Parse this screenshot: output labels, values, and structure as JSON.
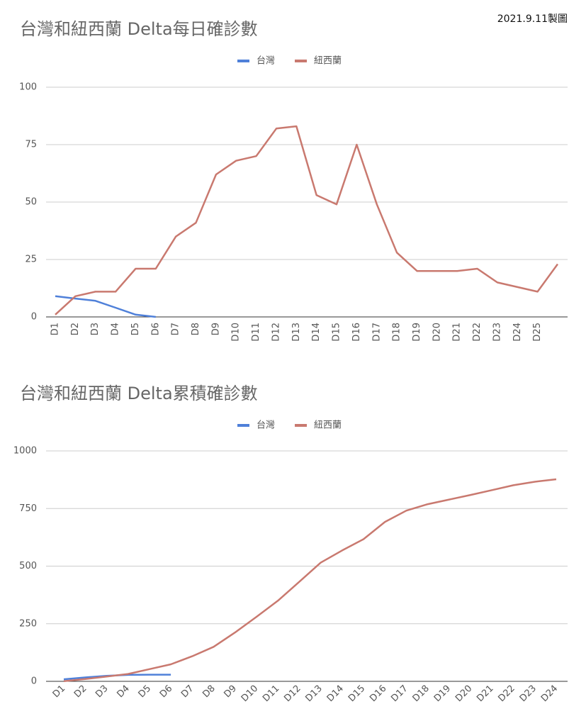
{
  "note": "2021.9.11製圖",
  "chart_data": [
    {
      "type": "line",
      "title": "台灣和紐西蘭 Delta每日確診數",
      "categories": [
        "D1",
        "D2",
        "D3",
        "D4",
        "D5",
        "D6",
        "D7",
        "D8",
        "D9",
        "D10",
        "D11",
        "D12",
        "D13",
        "D14",
        "D15",
        "D16",
        "D17",
        "D18",
        "D19",
        "D20",
        "D21",
        "D22",
        "D23",
        "D24",
        "D25",
        null
      ],
      "series": [
        {
          "name": "台灣",
          "color": "#4f80d9",
          "values": [
            9,
            8,
            7,
            4,
            1,
            0,
            null,
            null,
            null,
            null,
            null,
            null,
            null,
            null,
            null,
            null,
            null,
            null,
            null,
            null,
            null,
            null,
            null,
            null,
            null,
            null
          ]
        },
        {
          "name": "紐西蘭",
          "color": "#c9796f",
          "values": [
            1,
            9,
            11,
            11,
            21,
            21,
            35,
            41,
            62,
            68,
            70,
            82,
            83,
            53,
            49,
            75,
            49,
            28,
            20,
            20,
            20,
            21,
            15,
            13,
            11,
            23
          ]
        }
      ],
      "ylim": [
        0,
        100
      ],
      "yticks": [
        0,
        25,
        50,
        75,
        100
      ],
      "grid": true,
      "legend": "top"
    },
    {
      "type": "line",
      "title": "台灣和紐西蘭 Delta累積確診數",
      "categories": [
        "D1",
        "D2",
        "D3",
        "D4",
        "D5",
        "D6",
        "D7",
        "D8",
        "D9",
        "D10",
        "D11",
        "D12",
        "D13",
        "D14",
        "D15",
        "D16",
        "D17",
        "D18",
        "D19",
        "D20",
        "D21",
        "D22",
        "D23",
        "D24"
      ],
      "series": [
        {
          "name": "台灣",
          "color": "#4f80d9",
          "values": [
            9,
            17,
            24,
            28,
            29,
            29,
            null,
            null,
            null,
            null,
            null,
            null,
            null,
            null,
            null,
            null,
            null,
            null,
            null,
            null,
            null,
            null,
            null,
            null
          ]
        },
        {
          "name": "紐西蘭",
          "color": "#c9796f",
          "values": [
            1,
            10,
            21,
            32,
            53,
            74,
            109,
            150,
            212,
            280,
            350,
            432,
            515,
            568,
            617,
            692,
            741,
            769,
            789,
            809,
            830,
            851,
            866,
            877
          ]
        }
      ],
      "ylim": [
        0,
        1000
      ],
      "yticks": [
        0,
        250,
        500,
        750,
        1000
      ],
      "grid": true,
      "legend": "top"
    }
  ]
}
